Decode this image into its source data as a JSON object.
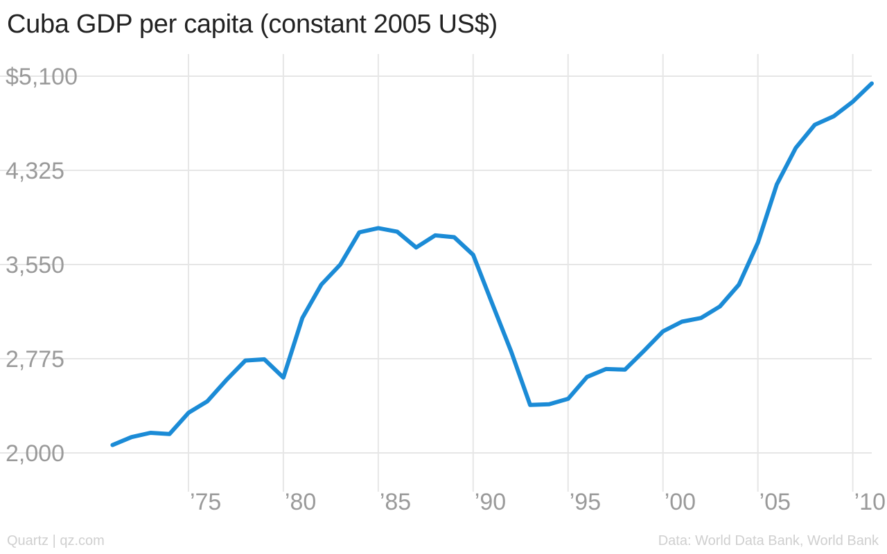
{
  "title": "Cuba GDP per capita (constant 2005 US$)",
  "footer": {
    "credit": "Quartz | qz.com",
    "source": "Data: World Data Bank, World Bank"
  },
  "colors": {
    "line": "#1b8bd6",
    "grid": "#e6e6e6",
    "tick_text": "#9a9a9a",
    "title": "#222222",
    "footer_text": "#cfcfcf"
  },
  "chart_data": {
    "type": "line",
    "title": "Cuba GDP per capita (constant 2005 US$)",
    "xlabel": "",
    "ylabel": "",
    "x_ticks": [
      {
        "value": 1975,
        "label": "’75"
      },
      {
        "value": 1980,
        "label": "’80"
      },
      {
        "value": 1985,
        "label": "’85"
      },
      {
        "value": 1990,
        "label": "’90"
      },
      {
        "value": 1995,
        "label": "’95"
      },
      {
        "value": 2000,
        "label": "’00"
      },
      {
        "value": 2005,
        "label": "’05"
      },
      {
        "value": 2010,
        "label": "’10"
      }
    ],
    "y_ticks": [
      {
        "value": 2000,
        "label": "2,000"
      },
      {
        "value": 2775,
        "label": "2,775"
      },
      {
        "value": 3550,
        "label": "3,550"
      },
      {
        "value": 4325,
        "label": "4,325"
      },
      {
        "value": 5100,
        "label": "$5,100"
      }
    ],
    "xlim": [
      1970,
      2011
    ],
    "ylim": [
      2000,
      5100
    ],
    "grid": true,
    "series": [
      {
        "color": "#1b8bd6",
        "x": [
          1971,
          1972,
          1973,
          1974,
          1975,
          1976,
          1977,
          1978,
          1979,
          1980,
          1981,
          1982,
          1983,
          1984,
          1985,
          1986,
          1987,
          1988,
          1989,
          1990,
          1991,
          1992,
          1993,
          1994,
          1995,
          1996,
          1997,
          1998,
          1999,
          2000,
          2001,
          2002,
          2003,
          2004,
          2005,
          2006,
          2007,
          2008,
          2009,
          2010,
          2011
        ],
        "y": [
          2065,
          2130,
          2165,
          2155,
          2330,
          2425,
          2600,
          2760,
          2770,
          2620,
          3110,
          3385,
          3550,
          3815,
          3850,
          3820,
          3690,
          3790,
          3775,
          3630,
          3230,
          2835,
          2395,
          2400,
          2445,
          2625,
          2690,
          2685,
          2840,
          3000,
          3080,
          3110,
          3205,
          3385,
          3730,
          4210,
          4510,
          4700,
          4770,
          4890,
          5040
        ]
      }
    ]
  }
}
